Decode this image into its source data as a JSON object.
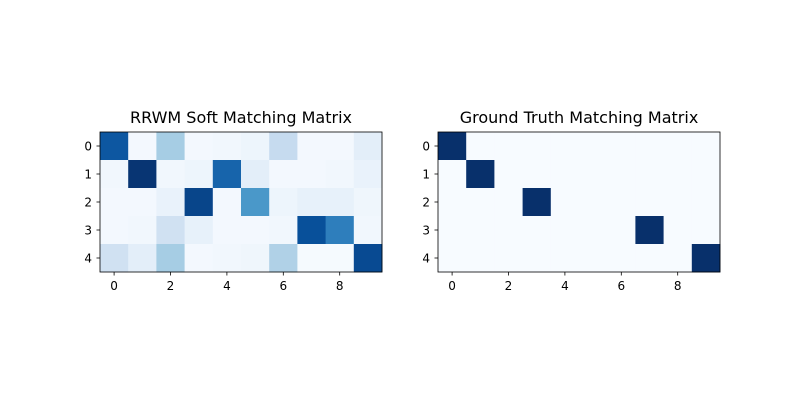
{
  "chart_data": [
    {
      "type": "heatmap",
      "title": "RRWM Soft Matching Matrix",
      "colormap": "Blues",
      "value_range": [
        0,
        1
      ],
      "x_ticks": [
        "0",
        "2",
        "4",
        "6",
        "8"
      ],
      "y_ticks": [
        "0",
        "1",
        "2",
        "3",
        "4"
      ],
      "rows": 5,
      "cols": 10,
      "values": [
        [
          0.85,
          0.02,
          0.35,
          0.02,
          0.03,
          0.05,
          0.25,
          0.02,
          0.02,
          0.1
        ],
        [
          0.03,
          0.98,
          0.03,
          0.05,
          0.8,
          0.1,
          0.02,
          0.02,
          0.03,
          0.07
        ],
        [
          0.02,
          0.02,
          0.07,
          0.92,
          0.02,
          0.6,
          0.05,
          0.08,
          0.08,
          0.04
        ],
        [
          0.02,
          0.03,
          0.2,
          0.08,
          0.02,
          0.02,
          0.03,
          0.88,
          0.7,
          0.03
        ],
        [
          0.2,
          0.1,
          0.35,
          0.02,
          0.03,
          0.04,
          0.32,
          0.01,
          0.01,
          0.9
        ]
      ]
    },
    {
      "type": "heatmap",
      "title": "Ground Truth Matching Matrix",
      "colormap": "Blues",
      "value_range": [
        0,
        1
      ],
      "x_ticks": [
        "0",
        "2",
        "4",
        "6",
        "8"
      ],
      "y_ticks": [
        "0",
        "1",
        "2",
        "3",
        "4"
      ],
      "rows": 5,
      "cols": 10,
      "values": [
        [
          1,
          0,
          0,
          0,
          0,
          0,
          0,
          0,
          0,
          0
        ],
        [
          0,
          1,
          0,
          0,
          0,
          0,
          0,
          0,
          0,
          0
        ],
        [
          0,
          0,
          0,
          1,
          0,
          0,
          0,
          0,
          0,
          0
        ],
        [
          0,
          0,
          0,
          0,
          0,
          0,
          0,
          1,
          0,
          0
        ],
        [
          0,
          0,
          0,
          0,
          0,
          0,
          0,
          0,
          0,
          1
        ]
      ]
    }
  ]
}
